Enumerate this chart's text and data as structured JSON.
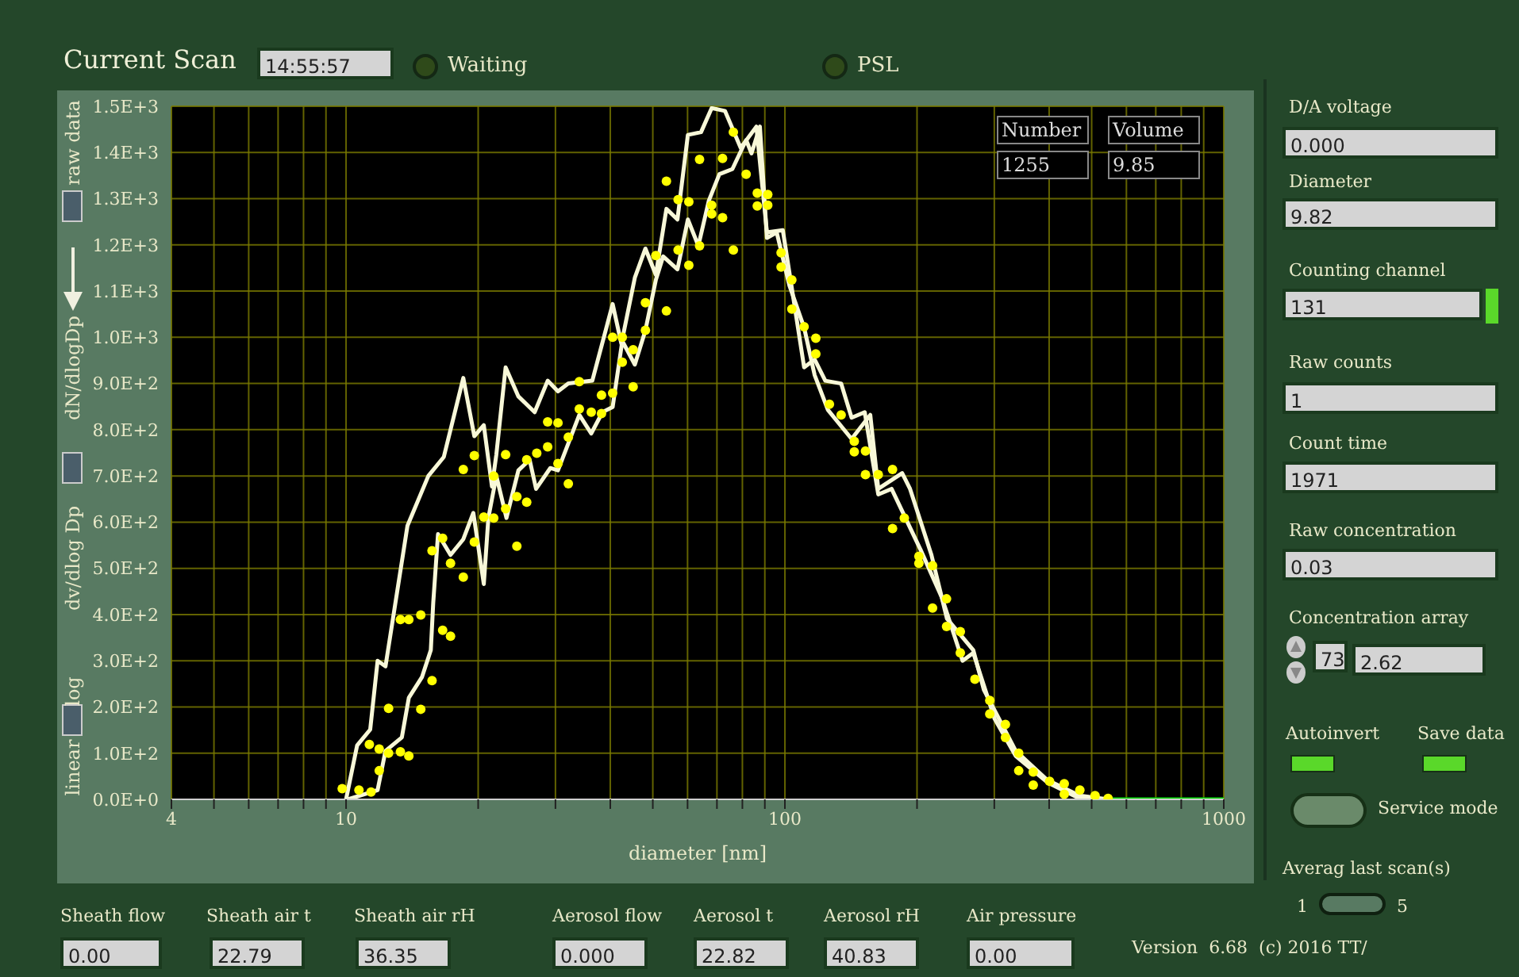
{
  "chart_data": {
    "type": "line",
    "title": "Current Scan",
    "xlabel": "diameter [nm]",
    "log": "x",
    "grid": true,
    "line_style": "solid",
    "xlim": [
      4,
      1000
    ],
    "xticks": [
      4,
      {
        "value": 5,
        "label": null
      },
      {
        "value": 6,
        "label": null
      },
      {
        "value": 7,
        "label": null
      },
      {
        "value": 8,
        "label": null
      },
      {
        "value": 9,
        "label": null
      },
      10,
      {
        "value": 20,
        "label": null
      },
      {
        "value": 30,
        "label": null
      },
      {
        "value": 40,
        "label": null
      },
      {
        "value": 50,
        "label": null
      },
      {
        "value": 60,
        "label": null
      },
      {
        "value": 70,
        "label": null
      },
      {
        "value": 80,
        "label": null
      },
      {
        "value": 90,
        "label": null
      },
      100,
      {
        "value": 200,
        "label": null
      },
      {
        "value": 300,
        "label": null
      },
      {
        "value": 400,
        "label": null
      },
      {
        "value": 500,
        "label": null
      },
      {
        "value": 600,
        "label": null
      },
      {
        "value": 700,
        "label": null
      },
      {
        "value": 800,
        "label": null
      },
      {
        "value": 900,
        "label": null
      },
      1000
    ],
    "ylim": [
      0,
      1500
    ],
    "yticks": [
      {
        "value": 0,
        "label": "0.0E+0"
      },
      {
        "value": 100,
        "label": "1.0E+2"
      },
      {
        "value": 200,
        "label": "2.0E+2"
      },
      {
        "value": 300,
        "label": "3.0E+2"
      },
      {
        "value": 400,
        "label": "4.0E+2"
      },
      {
        "value": 500,
        "label": "5.0E+2"
      },
      {
        "value": 600,
        "label": "6.0E+2"
      },
      {
        "value": 700,
        "label": "7.0E+2"
      },
      {
        "value": 800,
        "label": "8.0E+2"
      },
      {
        "value": 900,
        "label": "9.0E+2"
      },
      {
        "value": 1000,
        "label": "1.0E+3"
      },
      {
        "value": 1100,
        "label": "1.1E+3"
      },
      {
        "value": 1200,
        "label": "1.2E+3"
      },
      {
        "value": 1300,
        "label": "1.3E+3"
      },
      {
        "value": 1400,
        "label": "1.4E+3"
      },
      {
        "value": 1500,
        "label": "1.5E+3"
      }
    ],
    "series": [
      {
        "color": "#f8f8d8",
        "x": [
          10,
          10.6,
          11.35,
          11.8,
          12.3,
          13.8,
          15.4,
          16.7,
          18.5,
          19.6,
          20.6,
          21.5,
          22,
          23.1,
          24.7,
          26.9,
          28.8,
          30.4,
          32.1,
          36.4,
          40.5,
          42.4,
          45.5,
          48.1,
          50.8,
          53.7,
          56.9,
          60.1,
          64.4,
          68.1,
          73,
          79.3,
          86.1,
          91,
          98.9,
          110.6,
          116.9,
          123.6,
          134.3,
          141.9,
          152,
          163.2,
          175,
          203.8,
          227.8,
          254,
          268.7,
          300.6,
          335.7,
          396,
          469,
          545
        ],
        "values": [
          0,
          117,
          151,
          300,
          288,
          592,
          700,
          741,
          912,
          786,
          810,
          677,
          746,
          935,
          872,
          838,
          906,
          883,
          900,
          906,
          1072,
          986,
          1129,
          1192,
          1135,
          1278,
          1255,
          1438,
          1444,
          1496,
          1490,
          1410,
          1456,
          1227,
          1232,
          935,
          952,
          906,
          900,
          826,
          838,
          660,
          672,
          540,
          437,
          300,
          317,
          174,
          94,
          37,
          2,
          0
        ]
      },
      {
        "color": "#f8f8d8",
        "x": [
          10.1,
          11.8,
          12.3,
          13.4,
          13.9,
          14.9,
          15.6,
          15.8,
          16.2,
          17.3,
          18.5,
          19.5,
          20.6,
          21.1,
          22,
          23.2,
          24.7,
          26.2,
          27.1,
          29.2,
          30.4,
          34,
          36.2,
          38.4,
          40.5,
          42.6,
          45.5,
          48.1,
          50.8,
          52.8,
          56.9,
          60.1,
          63.5,
          67.1,
          70.9,
          75.9,
          81.6,
          83.9,
          87.7,
          91,
          95.8,
          102.4,
          110.6,
          116.9,
          125.3,
          141.9,
          156.5,
          163.2,
          185,
          192.8,
          215.7,
          234,
          268.7,
          284,
          335.7,
          396,
          469,
          545
        ],
        "values": [
          0,
          20,
          105,
          134,
          220,
          265,
          323,
          426,
          574,
          529,
          563,
          620,
          466,
          609,
          700,
          609,
          712,
          735,
          672,
          717,
          712,
          832,
          792,
          838,
          849,
          992,
          941,
          1015,
          1124,
          1175,
          1147,
          1255,
          1198,
          1296,
          1353,
          1364,
          1427,
          1398,
          1456,
          1215,
          1227,
          1112,
          1021,
          918,
          843,
          780,
          832,
          672,
          706,
          672,
          529,
          391,
          323,
          237,
          105,
          42,
          8,
          0
        ]
      },
      {
        "color": "#00e000",
        "x": [
          545,
          1000
        ],
        "values": [
          0,
          0
        ]
      },
      {
        "type": "scatter",
        "color": "#ffff00",
        "marker": "circle",
        "x": [
          9.8,
          10.7,
          11.4,
          11.3,
          11.9,
          11.9,
          12.5,
          12.5,
          13.3,
          13.9,
          13.3,
          13.9,
          14.8,
          14.8,
          15.7,
          16.6,
          17.3,
          15.7,
          16.6,
          17.3,
          18.5,
          18.5,
          19.6,
          19.6,
          20.6,
          21.7,
          21.7,
          23.1,
          23.1,
          24.5,
          24.5,
          25.8,
          25.8,
          27.2,
          28.8,
          30.4,
          32.1,
          28.8,
          30.4,
          32.1,
          34,
          34,
          36.2,
          38.2,
          38.2,
          40.5,
          40.5,
          42.6,
          42.6,
          45.1,
          45.1,
          48.1,
          48.1,
          50.8,
          53.7,
          53.7,
          57.1,
          57.1,
          60.4,
          60.4,
          63.9,
          63.9,
          68.1,
          68.1,
          72.1,
          72.1,
          76.3,
          76.3,
          81.6,
          86.5,
          86.5,
          91.4,
          91.4,
          98,
          98,
          103.7,
          103.7,
          110.6,
          117.6,
          117.6,
          126.3,
          134.3,
          143.9,
          143.9,
          152.6,
          152.6,
          163.2,
          175.9,
          175.9,
          187.1,
          202,
          202,
          217,
          217,
          233.5,
          233.5,
          251,
          251,
          271,
          293,
          293,
          318,
          318,
          341,
          341,
          368,
          368,
          401,
          433,
          433,
          470,
          509,
          545
        ],
        "values": [
          23,
          20,
          16,
          119,
          109,
          62,
          197,
          100,
          103,
          94,
          389,
          389,
          399,
          195,
          257,
          366,
          353,
          538,
          565,
          511,
          481,
          714,
          744,
          557,
          611,
          609,
          700,
          746,
          629,
          655,
          548,
          643,
          735,
          749,
          763,
          727,
          683,
          817,
          815,
          784,
          904,
          845,
          838,
          875,
          835,
          879,
          1000,
          1000,
          946,
          893,
          973,
          1075,
          1015,
          1177,
          1057,
          1338,
          1298,
          1189,
          1293,
          1156,
          1385,
          1198,
          1286,
          1267,
          1387,
          1259,
          1444,
          1189,
          1353,
          1312,
          1284,
          1309,
          1286,
          1183,
          1152,
          1124,
          1061,
          1023,
          998,
          964,
          855,
          832,
          775,
          752,
          754,
          703,
          703,
          714,
          586,
          609,
          526,
          511,
          506,
          414,
          434,
          374,
          363,
          317,
          260,
          214,
          185,
          162,
          134,
          100,
          62,
          59,
          31,
          39,
          34,
          11,
          20,
          8,
          2
        ]
      }
    ],
    "annotations": [
      "14:55:57",
      "Waiting",
      "PSL",
      "Number",
      "1255",
      "Volume",
      "9.85",
      "raw data",
      "dN/dlogDp",
      "dv/dlog Dp",
      "log",
      "linear",
      "D/A voltage",
      "0.000",
      "Diameter",
      "9.82",
      "Counting channel",
      "131",
      "Raw counts",
      "1",
      "Count time",
      "1971",
      "Raw concentration",
      "0.03",
      "Concentration array",
      "73",
      "2.62",
      "Autoinvert",
      "Save data",
      "Service mode",
      "Averag last scan(s)",
      "1",
      "5",
      "Sheath flow",
      "0.00",
      "Sheath air t",
      "22.79",
      "Sheath air rH",
      "36.35",
      "Aerosol flow",
      "0.000",
      "Aerosol t",
      "22.82",
      "Aerosol rH",
      "40.83",
      "Air pressure",
      "0.00",
      "Version  6.68  (c) 2016 TT/"
    ]
  }
}
